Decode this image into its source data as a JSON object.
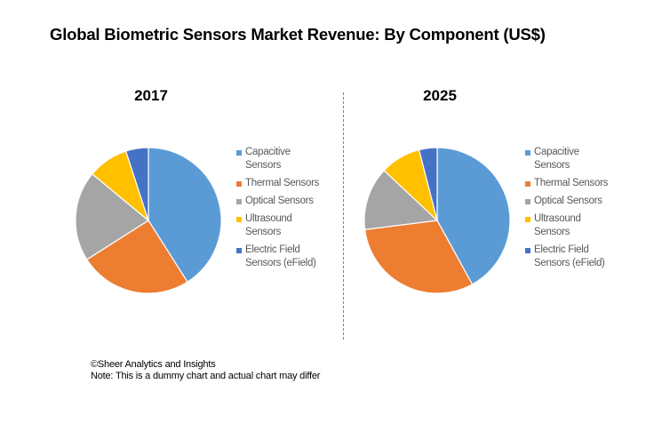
{
  "title": "Global Biometric Sensors Market Revenue: By Component (US$)",
  "footer": {
    "line1": "©Sheer Analytics and Insights",
    "line2": "Note: This is a dummy chart and actual chart may differ"
  },
  "chart_data": [
    {
      "type": "pie",
      "title": "2017",
      "categories": [
        "Capacitive Sensors",
        "Thermal Sensors",
        "Optical Sensors",
        "Ultrasound Sensors",
        "Electric Field Sensors (eField)"
      ],
      "values": [
        41,
        25,
        20,
        9,
        5
      ],
      "colors": [
        "#5b9bd5",
        "#ed7d31",
        "#a5a5a5",
        "#ffc000",
        "#4472c4"
      ],
      "legend_placement": "right",
      "legend_labels": [
        "Capacitive\nSensors",
        "Thermal Sensors",
        "Optical Sensors",
        "Ultrasound\nSensors",
        "Electric Field\nSensors (eField)"
      ]
    },
    {
      "type": "pie",
      "title": "2025",
      "categories": [
        "Capacitive Sensors",
        "Thermal Sensors",
        "Optical Sensors",
        "Ultrasound Sensors",
        "Electric Field Sensors (eField)"
      ],
      "values": [
        42,
        31,
        14,
        9,
        4
      ],
      "colors": [
        "#5b9bd5",
        "#ed7d31",
        "#a5a5a5",
        "#ffc000",
        "#4472c4"
      ],
      "legend_placement": "right",
      "legend_labels": [
        "Capacitive\nSensors",
        "Thermal Sensors",
        "Optical Sensors",
        "Ultrasound\nSensors",
        "Electric Field\nSensors (eField)"
      ]
    }
  ]
}
